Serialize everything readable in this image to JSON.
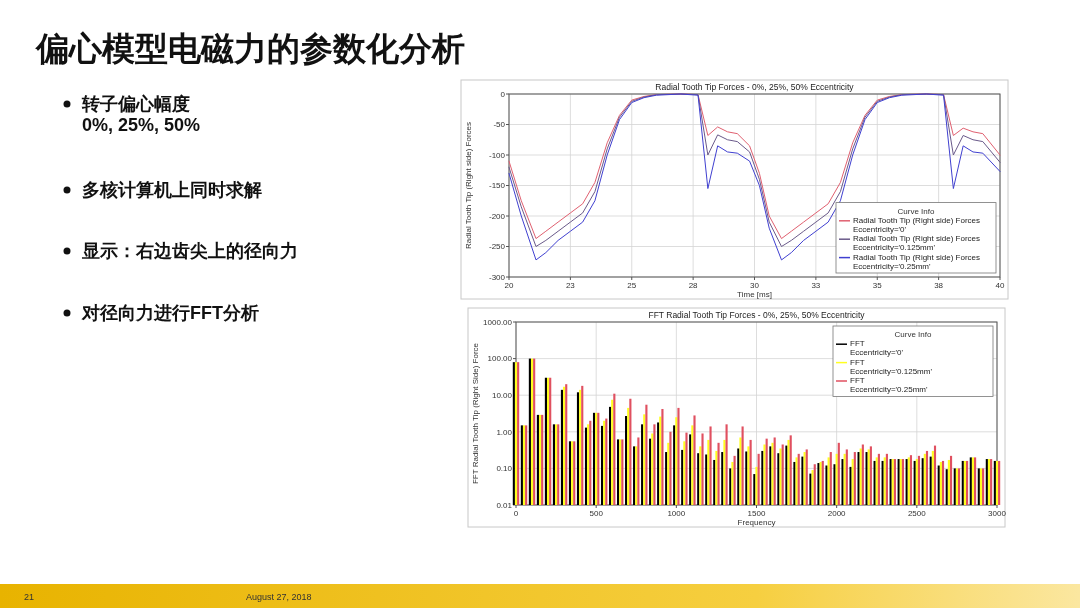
{
  "chart_data": [
    {
      "type": "other",
      "title": "偏心模型电磁力的参数化分析",
      "annotations": [
        "转子偏心幅度\n0%, 25%, 50%",
        "多核计算机上同时求解",
        "显示：右边齿尖上的径向力",
        "对径向力进行FFT分析",
        "21",
        "August 27, 2018"
      ]
    },
    {
      "type": "line",
      "title": "Radial Tooth Tip Forces - 0%, 25%, 50% Eccentricity",
      "xlabel": "Time [ms]",
      "ylabel": "Radial Tooth Tip (Right side) Forces",
      "legend_title": "Curve Info",
      "legend": "bottom right",
      "grid": true,
      "line_style": "solid",
      "xlim": [
        20,
        40
      ],
      "xticks": [
        20,
        {
          "value": 22.5,
          "label": "23"
        },
        25,
        {
          "value": 27.5,
          "label": "28"
        },
        30,
        {
          "value": 32.5,
          "label": "33"
        },
        35,
        {
          "value": 37.5,
          "label": "38"
        },
        40
      ],
      "ylim": [
        -300,
        0
      ],
      "yticks": [
        -300,
        -250,
        -200,
        -150,
        -100,
        -50,
        0
      ],
      "x": [
        20,
        20.5,
        21.1,
        21.5,
        22,
        22.5,
        23,
        23.5,
        24,
        24.5,
        25,
        25.5,
        26,
        27,
        27.7,
        28.1,
        28.5,
        28.9,
        29.3,
        29.8,
        30.2,
        30.6,
        31.1,
        31.5,
        32,
        32.5,
        33,
        33.5,
        34,
        34.5,
        35,
        35.5,
        36,
        37,
        37.7,
        38.1,
        38.5,
        38.9,
        39.3,
        40
      ],
      "series": [
        {
          "name": "Radial Tooth Tip (Right side) Forces\nEccentricity='0'",
          "color": "#e06070",
          "values": [
            -110,
            -175,
            -237,
            -225,
            -210,
            -195,
            -180,
            -145,
            -80,
            -35,
            -10,
            -4,
            -1,
            0,
            -1,
            -68,
            -54,
            -62,
            -65,
            -85,
            -130,
            -200,
            -237,
            -225,
            -210,
            -195,
            -180,
            -145,
            -80,
            -35,
            -10,
            -4,
            -1,
            0,
            -1,
            -68,
            -56,
            -62,
            -65,
            -100
          ]
        },
        {
          "name": "Radial Tooth Tip (Right side) Forces\nEccentricity='0.125mm'",
          "color": "#6a5a8a",
          "values": [
            -120,
            -185,
            -250,
            -240,
            -225,
            -210,
            -195,
            -160,
            -90,
            -38,
            -12,
            -5,
            -1,
            0,
            -1,
            -100,
            -67,
            -75,
            -78,
            -95,
            -140,
            -210,
            -250,
            -240,
            -225,
            -210,
            -195,
            -160,
            -90,
            -38,
            -12,
            -5,
            -1,
            0,
            -1,
            -100,
            -68,
            -75,
            -78,
            -112
          ]
        },
        {
          "name": "Radial Tooth Tip (Right side) Forces\nEccentricity='0.25mm'",
          "color": "#4040d0",
          "values": [
            -130,
            -200,
            -272,
            -260,
            -240,
            -225,
            -210,
            -175,
            -100,
            -42,
            -14,
            -6,
            -2,
            0,
            -2,
            -155,
            -85,
            -95,
            -97,
            -110,
            -150,
            -220,
            -272,
            -260,
            -240,
            -225,
            -210,
            -175,
            -100,
            -42,
            -14,
            -6,
            -2,
            0,
            -2,
            -155,
            -85,
            -95,
            -97,
            -127
          ]
        }
      ]
    },
    {
      "type": "bar",
      "title": "FFT Radial Tooth Tip Forces - 0%, 25%, 50% Eccentricity",
      "xlabel": "Frequency",
      "ylabel": "FFT Radial Tooth Tip (Right Side) Force",
      "legend_title": "Curve Info",
      "legend": "top right",
      "grid": true,
      "log": "y",
      "xlim": [
        0,
        3000
      ],
      "xticks": [
        0,
        500,
        1000,
        1500,
        2000,
        2500,
        3000
      ],
      "ylim": [
        0.01,
        1000
      ],
      "yticks": [
        0.01,
        {
          "value": 0.1,
          "label": "0.10"
        },
        {
          "value": 1,
          "label": "1.00"
        },
        {
          "value": 10,
          "label": "10.00"
        },
        {
          "value": 100,
          "label": "100.00"
        },
        {
          "value": 1000,
          "label": "1000.00"
        }
      ],
      "x": [
        0,
        50,
        100,
        150,
        200,
        250,
        300,
        350,
        400,
        450,
        500,
        550,
        600,
        650,
        700,
        750,
        800,
        850,
        900,
        950,
        1000,
        1050,
        1100,
        1150,
        1200,
        1250,
        1300,
        1350,
        1400,
        1450,
        1500,
        1550,
        1600,
        1650,
        1700,
        1750,
        1800,
        1850,
        1900,
        1950,
        2000,
        2050,
        2100,
        2150,
        2200,
        2250,
        2300,
        2350,
        2400,
        2450,
        2500,
        2550,
        2600,
        2650,
        2700,
        2750,
        2800,
        2850,
        2900,
        2950,
        3000
      ],
      "series": [
        {
          "name": "FFT\nEccentricity='0'",
          "color": "#000000",
          "values": [
            80,
            1.5,
            100,
            2.9,
            30,
            1.6,
            14,
            0.55,
            12,
            1.3,
            3.3,
            1.45,
            4.8,
            0.62,
            2.7,
            0.4,
            1.6,
            0.65,
            1.8,
            0.28,
            1.5,
            0.32,
            0.85,
            0.26,
            0.24,
            0.17,
            0.28,
            0.1,
            0.35,
            0.29,
            0.07,
            0.3,
            0.4,
            0.26,
            0.42,
            0.15,
            0.21,
            0.072,
            0.14,
            0.12,
            0.13,
            0.18,
            0.11,
            0.28,
            0.28,
            0.16,
            0.16,
            0.18,
            0.18,
            0.18,
            0.16,
            0.19,
            0.21,
            0.12,
            0.095,
            0.1,
            0.16,
            0.2,
            0.1,
            0.18,
            0.16
          ]
        },
        {
          "name": "FFT\nEccentricity='0.125mm'",
          "color": "#ffff20",
          "values": [
            80,
            1.5,
            100,
            2.9,
            30,
            1.6,
            17,
            0.55,
            14,
            1.6,
            3.3,
            2,
            7.5,
            0.62,
            4.5,
            0.4,
            3,
            0.9,
            2.6,
            0.5,
            2.5,
            0.55,
            1.5,
            0.4,
            0.6,
            0.3,
            0.6,
            0.15,
            0.7,
            0.4,
            0.11,
            0.45,
            0.5,
            0.35,
            0.6,
            0.2,
            0.28,
            0.09,
            0.15,
            0.2,
            0.25,
            0.25,
            0.18,
            0.35,
            0.33,
            0.2,
            0.2,
            0.18,
            0.18,
            0.2,
            0.18,
            0.25,
            0.3,
            0.15,
            0.17,
            0.1,
            0.16,
            0.2,
            0.1,
            0.18,
            0.16
          ]
        },
        {
          "name": "FFT\nEccentricity='0.25mm'",
          "color": "#e05060",
          "values": [
            80,
            1.5,
            100,
            2.9,
            30,
            1.6,
            20,
            0.55,
            18,
            2,
            3.3,
            2.3,
            11,
            0.62,
            8,
            0.7,
            5.5,
            1.6,
            4.2,
            1,
            4.5,
            0.95,
            2.8,
            0.9,
            1.4,
            0.5,
            1.6,
            0.22,
            1.4,
            0.6,
            0.25,
            0.65,
            0.7,
            0.45,
            0.8,
            0.25,
            0.33,
            0.13,
            0.16,
            0.28,
            0.5,
            0.33,
            0.28,
            0.45,
            0.4,
            0.25,
            0.25,
            0.18,
            0.18,
            0.23,
            0.22,
            0.3,
            0.42,
            0.16,
            0.22,
            0.1,
            0.16,
            0.2,
            0.1,
            0.18,
            0.16
          ]
        }
      ]
    }
  ]
}
